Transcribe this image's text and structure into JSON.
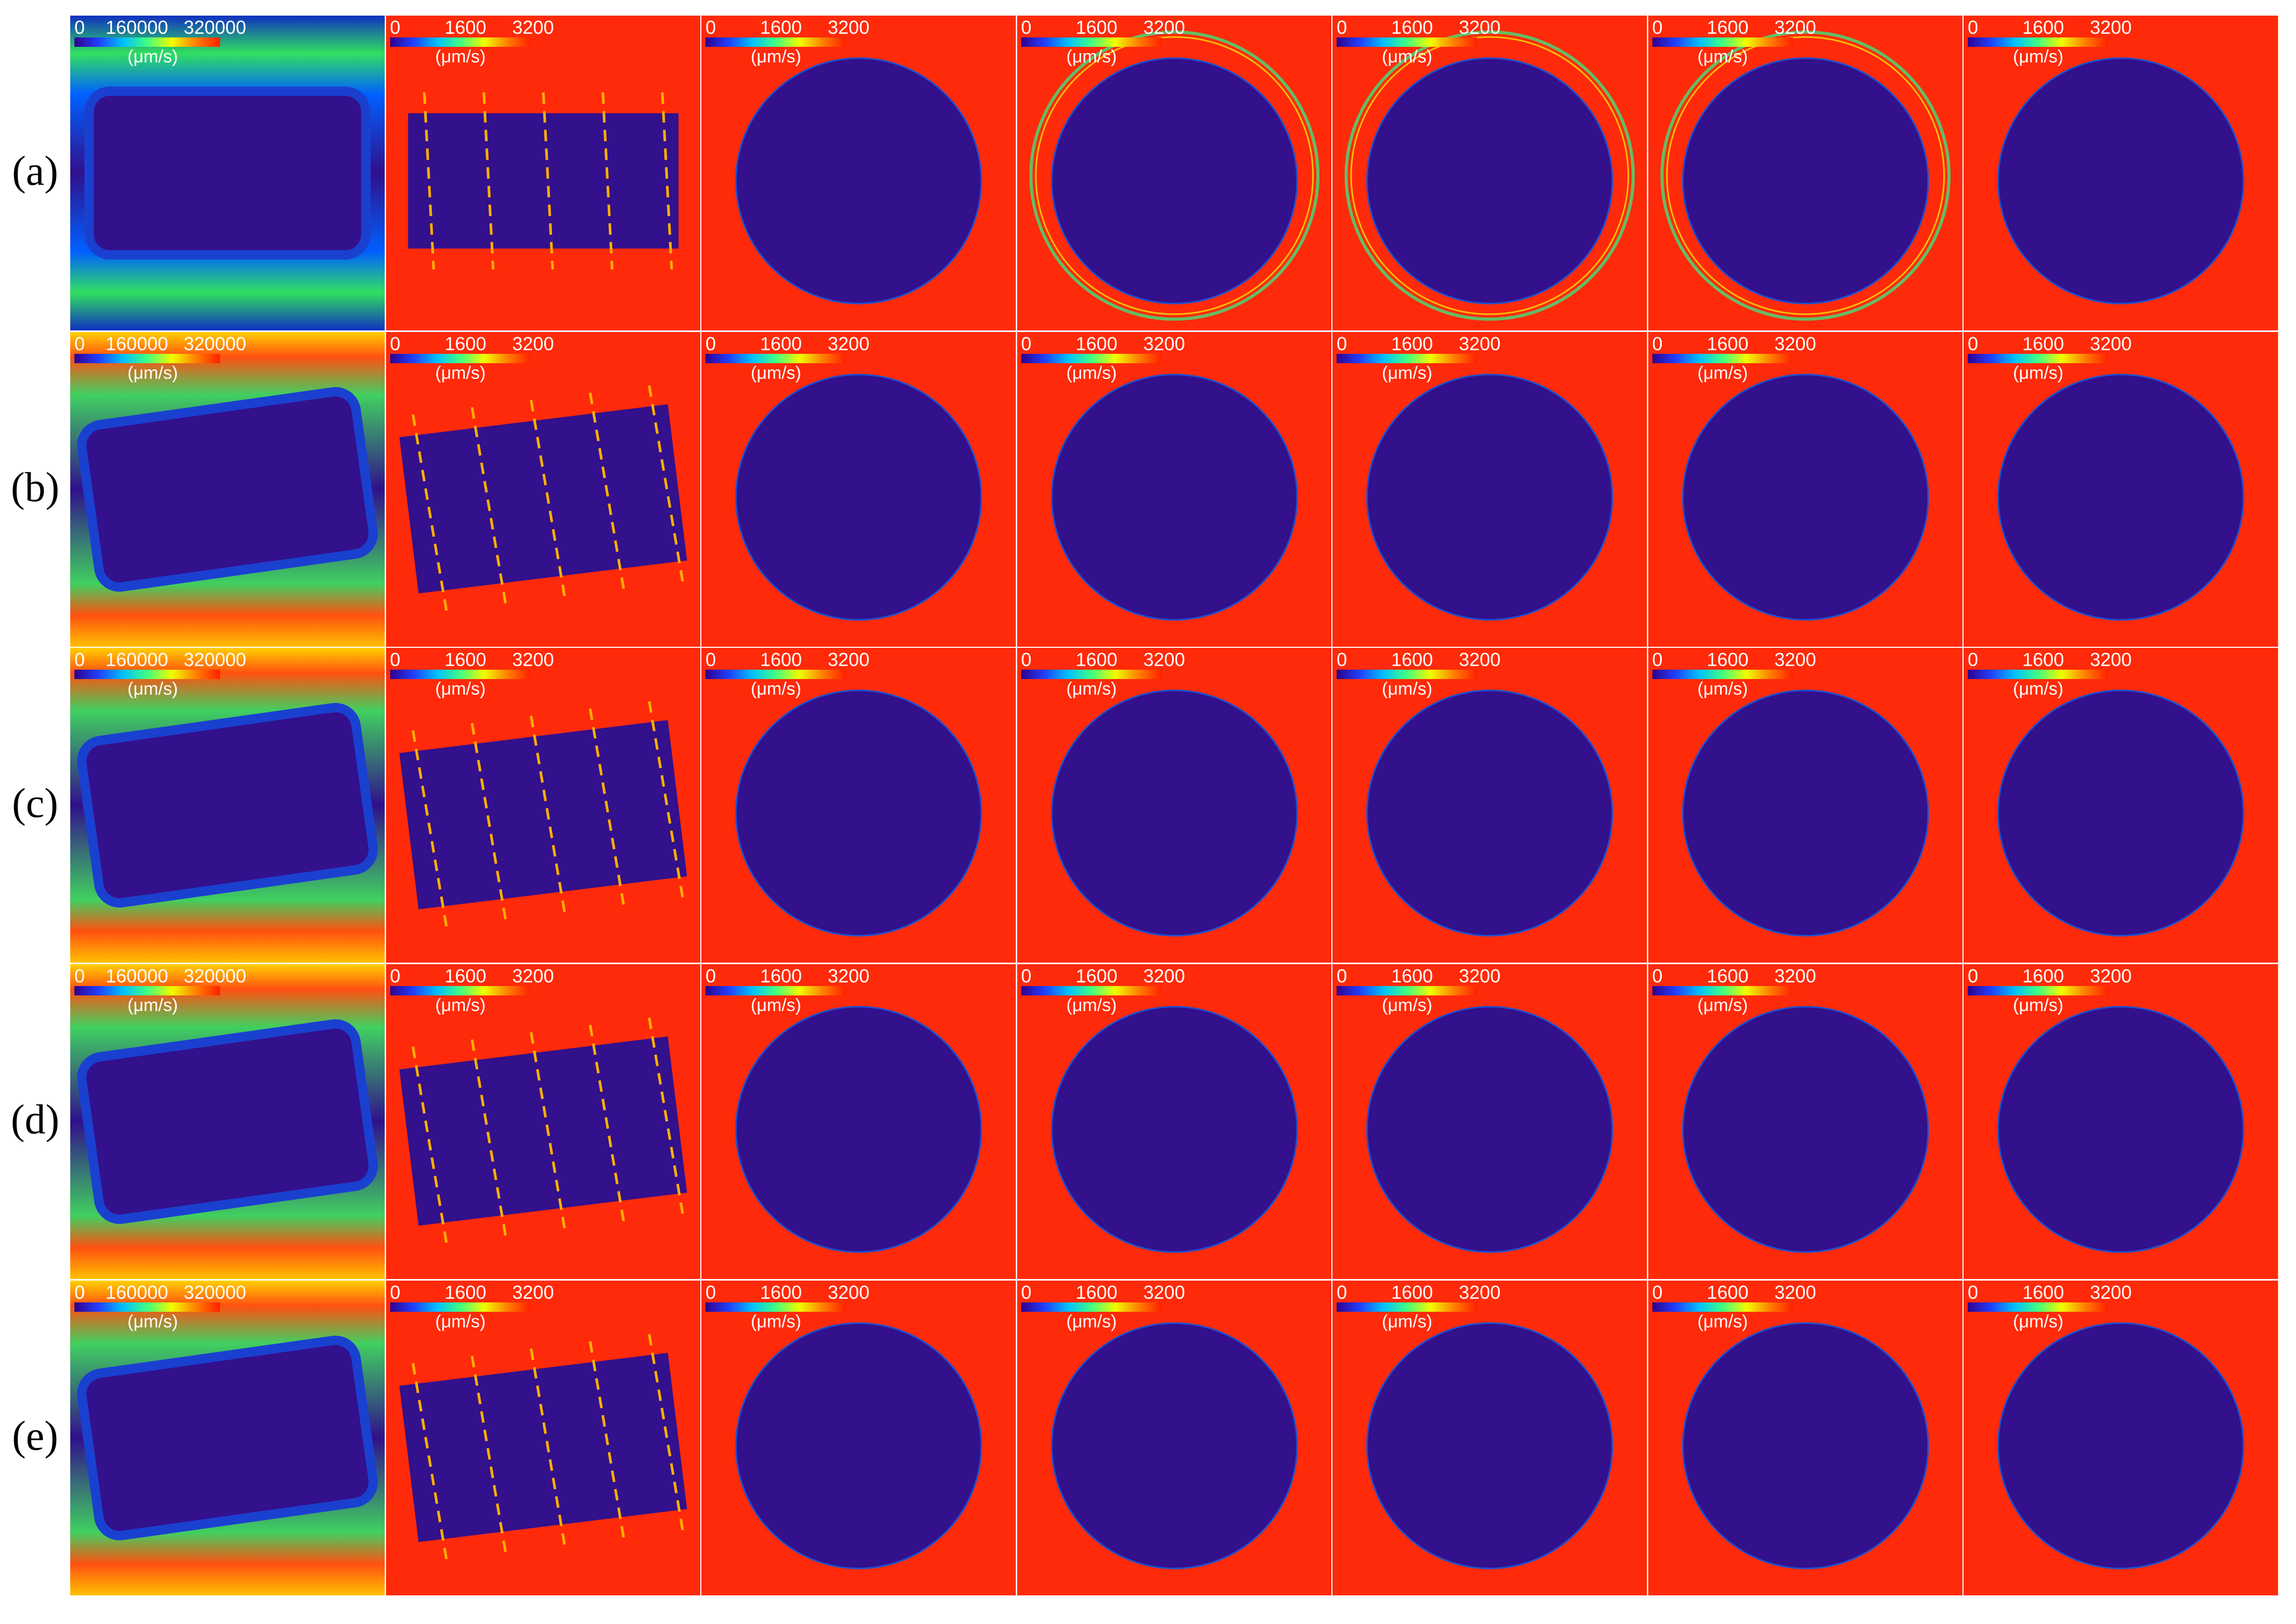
{
  "row_labels": [
    "(a)",
    "(b)",
    "(c)",
    "(d)",
    "(e)"
  ],
  "colorbar_first": {
    "min": "0",
    "mid": "160000",
    "max": "320000",
    "unit": "(μm/s)"
  },
  "colorbar_other": {
    "min": "0",
    "mid": "1600",
    "max": "3200",
    "unit": "(μm/s)"
  },
  "colors": {
    "background_red": "#ff2a0a",
    "deep_blue": "#33108c",
    "cyan": "#00c8ff",
    "green": "#3fe27a",
    "yellow": "#f5e600",
    "orange": "#ff7a00",
    "dashed_line": "#ffb000"
  }
}
